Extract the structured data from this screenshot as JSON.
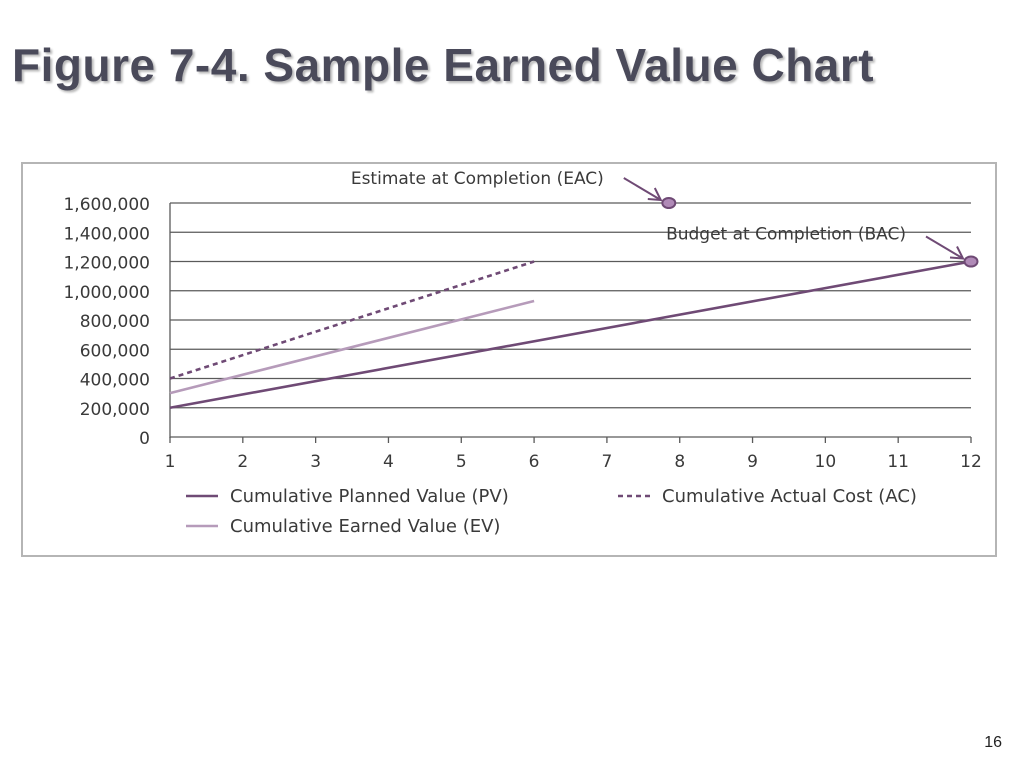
{
  "slide": {
    "title": "Figure 7-4. Sample Earned Value Chart",
    "page_number": "16"
  },
  "colors": {
    "pv": "#6f4a75",
    "ev": "#b69bba",
    "ac": "#6f4a75",
    "grid": "#5a5a5a",
    "marker_fill": "#b08ab7",
    "marker_stroke": "#6f4a75"
  },
  "chart_data": {
    "type": "line",
    "title": "",
    "xlabel": "",
    "ylabel": "",
    "x_ticks": [
      "1",
      "2",
      "3",
      "4",
      "5",
      "6",
      "7",
      "8",
      "9",
      "10",
      "11",
      "12"
    ],
    "y_ticks": [
      "0",
      "200,000",
      "400,000",
      "600,000",
      "800,000",
      "1,000,000",
      "1,200,000",
      "1,400,000",
      "1,600,000"
    ],
    "xlim": [
      1,
      12
    ],
    "ylim": [
      0,
      1600000
    ],
    "grid": "horizontal",
    "legend_position": "bottom",
    "series": [
      {
        "name": "Cumulative Planned Value (PV)",
        "style": "solid",
        "x": [
          1,
          12
        ],
        "y": [
          200000,
          1200000
        ]
      },
      {
        "name": "Cumulative Earned Value (EV)",
        "style": "solid",
        "x": [
          1,
          6
        ],
        "y": [
          300000,
          930000
        ]
      },
      {
        "name": "Cumulative Actual Cost (AC)",
        "style": "dashed",
        "x": [
          1,
          6
        ],
        "y": [
          400000,
          1200000
        ]
      }
    ],
    "annotations": [
      {
        "label": "Estimate at Completion (EAC)",
        "x": 7.85,
        "y": 1600000
      },
      {
        "label": "Budget at Completion (BAC)",
        "x": 12,
        "y": 1200000
      }
    ]
  }
}
